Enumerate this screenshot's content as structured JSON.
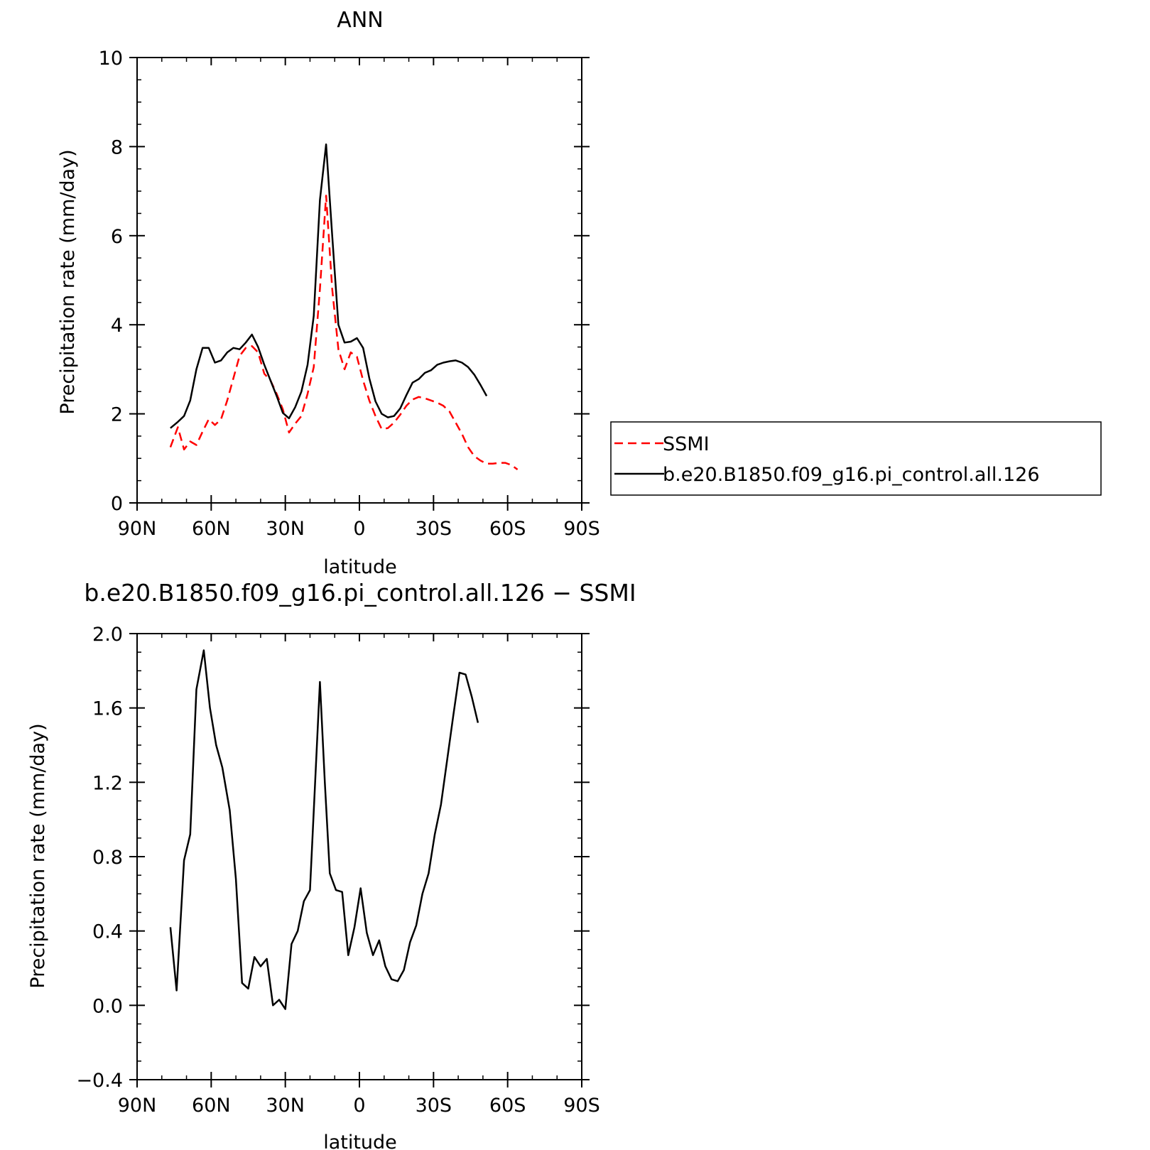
{
  "chart_data": [
    {
      "type": "line",
      "title": "ANN",
      "xlabel": "latitude",
      "ylabel": "Precipitation rate (mm/day)",
      "xlim": [
        90,
        -90
      ],
      "ylim": [
        0,
        10
      ],
      "x_ticks": [
        {
          "value": 90,
          "label": "90N"
        },
        {
          "value": 60,
          "label": "60N"
        },
        {
          "value": 30,
          "label": "30N"
        },
        {
          "value": 0,
          "label": "0"
        },
        {
          "value": -30,
          "label": "30S"
        },
        {
          "value": -60,
          "label": "60S"
        },
        {
          "value": -90,
          "label": "90S"
        }
      ],
      "y_ticks": [
        {
          "value": 0,
          "label": "0"
        },
        {
          "value": 2,
          "label": "2"
        },
        {
          "value": 4,
          "label": "4"
        },
        {
          "value": 6,
          "label": "6"
        },
        {
          "value": 8,
          "label": "8"
        },
        {
          "value": 10,
          "label": "10"
        }
      ],
      "legend": "right",
      "series": [
        {
          "name": "SSMI",
          "color": "#ff0000",
          "style": "dashed",
          "points": [
            [
              76.5,
              1.25
            ],
            [
              73.5,
              1.7
            ],
            [
              71,
              1.2
            ],
            [
              68.5,
              1.38
            ],
            [
              66,
              1.3
            ],
            [
              63.5,
              1.6
            ],
            [
              61,
              1.88
            ],
            [
              58.5,
              1.75
            ],
            [
              56,
              1.88
            ],
            [
              53.5,
              2.3
            ],
            [
              51,
              2.8
            ],
            [
              48.5,
              3.3
            ],
            [
              46,
              3.48
            ],
            [
              43.5,
              3.52
            ],
            [
              41,
              3.38
            ],
            [
              38.5,
              2.9
            ],
            [
              36,
              2.75
            ],
            [
              33.5,
              2.45
            ],
            [
              31,
              2.1
            ],
            [
              28.5,
              1.58
            ],
            [
              26,
              1.78
            ],
            [
              23.5,
              1.95
            ],
            [
              21,
              2.45
            ],
            [
              18.5,
              3.05
            ],
            [
              16,
              4.8
            ],
            [
              13.5,
              6.9
            ],
            [
              11,
              4.8
            ],
            [
              8.5,
              3.45
            ],
            [
              6,
              3
            ],
            [
              3.5,
              3.38
            ],
            [
              1,
              3.28
            ],
            [
              -1.5,
              2.75
            ],
            [
              -4,
              2.3
            ],
            [
              -6.5,
              1.95
            ],
            [
              -9,
              1.66
            ],
            [
              -11.5,
              1.68
            ],
            [
              -14,
              1.8
            ],
            [
              -16.5,
              1.98
            ],
            [
              -19,
              2.18
            ],
            [
              -21.5,
              2.32
            ],
            [
              -24,
              2.38
            ],
            [
              -26.5,
              2.35
            ],
            [
              -29,
              2.3
            ],
            [
              -31.5,
              2.25
            ],
            [
              -34,
              2.18
            ],
            [
              -36.5,
              2.05
            ],
            [
              -39,
              1.8
            ],
            [
              -41.5,
              1.55
            ],
            [
              -44,
              1.25
            ],
            [
              -46.5,
              1.05
            ],
            [
              -49,
              0.95
            ],
            [
              -51.5,
              0.88
            ],
            [
              -54,
              0.88
            ],
            [
              -56.5,
              0.9
            ],
            [
              -59,
              0.9
            ],
            [
              -61.5,
              0.85
            ],
            [
              -64,
              0.75
            ]
          ]
        },
        {
          "name": "b.e20.B1850.f09_g16.pi_control.all.126",
          "color": "#000000",
          "style": "solid",
          "points": [
            [
              76.5,
              1.68
            ],
            [
              73.5,
              1.82
            ],
            [
              71,
              1.95
            ],
            [
              68.5,
              2.3
            ],
            [
              66,
              3
            ],
            [
              63.5,
              3.48
            ],
            [
              61,
              3.48
            ],
            [
              58.5,
              3.15
            ],
            [
              56,
              3.2
            ],
            [
              53.5,
              3.38
            ],
            [
              51,
              3.48
            ],
            [
              48.5,
              3.45
            ],
            [
              46,
              3.6
            ],
            [
              43.5,
              3.78
            ],
            [
              41,
              3.5
            ],
            [
              38.5,
              3.1
            ],
            [
              36,
              2.75
            ],
            [
              33.5,
              2.4
            ],
            [
              31,
              2.02
            ],
            [
              28.5,
              1.9
            ],
            [
              26,
              2.15
            ],
            [
              23.5,
              2.5
            ],
            [
              21,
              3.1
            ],
            [
              18.5,
              4.2
            ],
            [
              16,
              6.8
            ],
            [
              13.5,
              8.05
            ],
            [
              11,
              6
            ],
            [
              8.5,
              4
            ],
            [
              6,
              3.6
            ],
            [
              3.5,
              3.62
            ],
            [
              1,
              3.7
            ],
            [
              -1.5,
              3.48
            ],
            [
              -4,
              2.8
            ],
            [
              -6.5,
              2.28
            ],
            [
              -9,
              2
            ],
            [
              -11.5,
              1.92
            ],
            [
              -14,
              1.95
            ],
            [
              -16.5,
              2.12
            ],
            [
              -19,
              2.42
            ],
            [
              -21.5,
              2.7
            ],
            [
              -24,
              2.78
            ],
            [
              -26.5,
              2.92
            ],
            [
              -29,
              2.98
            ],
            [
              -31.5,
              3.1
            ],
            [
              -34,
              3.15
            ],
            [
              -36.5,
              3.18
            ],
            [
              -39,
              3.2
            ],
            [
              -41.5,
              3.15
            ],
            [
              -44,
              3.05
            ],
            [
              -46.5,
              2.88
            ],
            [
              -49,
              2.65
            ],
            [
              -51.5,
              2.4
            ]
          ]
        }
      ]
    },
    {
      "type": "line",
      "title": "b.e20.B1850.f09_g16.pi_control.all.126 − SSMI",
      "xlabel": "latitude",
      "ylabel": "Precipitation rate (mm/day)",
      "xlim": [
        90,
        -90
      ],
      "ylim": [
        -0.4,
        2.0
      ],
      "x_ticks": [
        {
          "value": 90,
          "label": "90N"
        },
        {
          "value": 60,
          "label": "60N"
        },
        {
          "value": 30,
          "label": "30N"
        },
        {
          "value": 0,
          "label": "0"
        },
        {
          "value": -30,
          "label": "30S"
        },
        {
          "value": -60,
          "label": "60S"
        },
        {
          "value": -90,
          "label": "90S"
        }
      ],
      "y_ticks": [
        {
          "value": -0.4,
          "label": "−0.4"
        },
        {
          "value": 0,
          "label": "0.0"
        },
        {
          "value": 0.4,
          "label": "0.4"
        },
        {
          "value": 0.8,
          "label": "0.8"
        },
        {
          "value": 1.2,
          "label": "1.2"
        },
        {
          "value": 1.6,
          "label": "1.6"
        },
        {
          "value": 2.0,
          "label": "2.0"
        }
      ],
      "series": [
        {
          "color": "#000000",
          "style": "solid",
          "points": [
            [
              76.5,
              0.42
            ],
            [
              74,
              0.08
            ],
            [
              71,
              0.78
            ],
            [
              68.5,
              0.92
            ],
            [
              66,
              1.7
            ],
            [
              63,
              1.91
            ],
            [
              60.5,
              1.6
            ],
            [
              58,
              1.4
            ],
            [
              55.5,
              1.28
            ],
            [
              52.5,
              1.05
            ],
            [
              50,
              0.68
            ],
            [
              47.5,
              0.12
            ],
            [
              45,
              0.09
            ],
            [
              42.5,
              0.26
            ],
            [
              40,
              0.21
            ],
            [
              37.5,
              0.25
            ],
            [
              35,
              0
            ],
            [
              32.5,
              0.03
            ],
            [
              30,
              -0.02
            ],
            [
              27.5,
              0.33
            ],
            [
              25,
              0.4
            ],
            [
              22.5,
              0.56
            ],
            [
              20,
              0.62
            ],
            [
              16,
              1.74
            ],
            [
              14,
              1.2
            ],
            [
              12,
              0.71
            ],
            [
              9.5,
              0.62
            ],
            [
              7,
              0.61
            ],
            [
              4.5,
              0.27
            ],
            [
              2,
              0.42
            ],
            [
              -0.5,
              0.63
            ],
            [
              -3,
              0.39
            ],
            [
              -5.5,
              0.27
            ],
            [
              -8,
              0.35
            ],
            [
              -10.5,
              0.21
            ],
            [
              -13,
              0.14
            ],
            [
              -15.5,
              0.13
            ],
            [
              -18,
              0.19
            ],
            [
              -20.5,
              0.34
            ],
            [
              -23,
              0.43
            ],
            [
              -25.5,
              0.6
            ],
            [
              -28,
              0.71
            ],
            [
              -30.5,
              0.92
            ],
            [
              -33,
              1.08
            ],
            [
              -35.5,
              1.32
            ],
            [
              -38,
              1.56
            ],
            [
              -40.5,
              1.79
            ],
            [
              -43,
              1.78
            ],
            [
              -45.5,
              1.66
            ],
            [
              -48,
              1.52
            ]
          ]
        }
      ]
    }
  ]
}
